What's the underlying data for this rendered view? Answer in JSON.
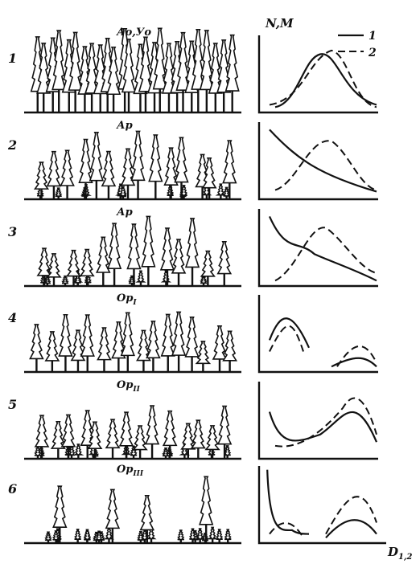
{
  "axes": {
    "y_label": "N,M",
    "x_label": "D",
    "x_label_sub": "1,2"
  },
  "legend": [
    {
      "label": "1"
    },
    {
      "label": "2"
    }
  ],
  "panels": [
    {
      "number": "1",
      "label": "Ао,Уо"
    },
    {
      "number": "2",
      "label": "Ар"
    },
    {
      "number": "3",
      "label": "Ар"
    },
    {
      "number": "4",
      "label": "Ор",
      "label_sub": "I"
    },
    {
      "number": "5",
      "label": "Ор",
      "label_sub": "II"
    },
    {
      "number": "6",
      "label": "Ор",
      "label_sub": "III"
    }
  ]
}
